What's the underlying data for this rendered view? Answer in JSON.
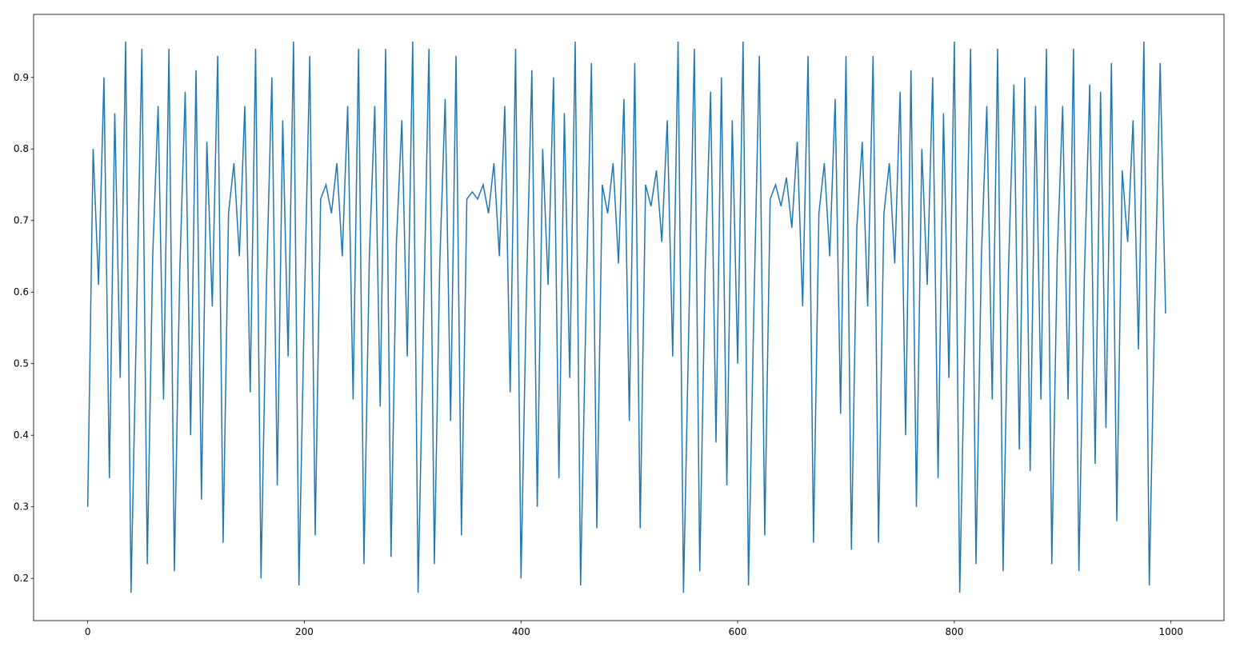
{
  "chart_data": {
    "type": "line",
    "color": "#1f77b4",
    "x": [
      0,
      5,
      10,
      15,
      20,
      25,
      30,
      35,
      40,
      45,
      50,
      55,
      60,
      65,
      70,
      75,
      80,
      85,
      90,
      95,
      100,
      105,
      110,
      115,
      120,
      125,
      130,
      135,
      140,
      145,
      150,
      155,
      160,
      165,
      170,
      175,
      180,
      185,
      190,
      195,
      200,
      205,
      210,
      215,
      220,
      225,
      230,
      235,
      240,
      245,
      250,
      255,
      260,
      265,
      270,
      275,
      280,
      285,
      290,
      295,
      300,
      305,
      310,
      315,
      320,
      325,
      330,
      335,
      340,
      345,
      350,
      355,
      360,
      365,
      370,
      375,
      380,
      385,
      390,
      395,
      400,
      405,
      410,
      415,
      420,
      425,
      430,
      435,
      440,
      445,
      450,
      455,
      460,
      465,
      470,
      475,
      480,
      485,
      490,
      495,
      500,
      505,
      510,
      515,
      520,
      525,
      530,
      535,
      540,
      545,
      550,
      555,
      560,
      565,
      570,
      575,
      580,
      585,
      590,
      595,
      600,
      605,
      610,
      615,
      620,
      625,
      630,
      635,
      640,
      645,
      650,
      655,
      660,
      665,
      670,
      675,
      680,
      685,
      690,
      695,
      700,
      705,
      710,
      715,
      720,
      725,
      730,
      735,
      740,
      745,
      750,
      755,
      760,
      765,
      770,
      775,
      780,
      785,
      790,
      795,
      800,
      805,
      810,
      815,
      820,
      825,
      830,
      835,
      840,
      845,
      850,
      855,
      860,
      865,
      870,
      875,
      880,
      885,
      890,
      895,
      900,
      905,
      910,
      915,
      920,
      925,
      930,
      935,
      940,
      945,
      950,
      955,
      960,
      965,
      970,
      975,
      980,
      985,
      990,
      995
    ],
    "values": [
      0.3,
      0.8,
      0.61,
      0.9,
      0.34,
      0.85,
      0.48,
      0.95,
      0.18,
      0.56,
      0.94,
      0.22,
      0.65,
      0.86,
      0.45,
      0.94,
      0.21,
      0.63,
      0.88,
      0.4,
      0.91,
      0.31,
      0.81,
      0.58,
      0.93,
      0.25,
      0.71,
      0.78,
      0.65,
      0.86,
      0.46,
      0.94,
      0.2,
      0.61,
      0.9,
      0.33,
      0.84,
      0.51,
      0.95,
      0.19,
      0.58,
      0.93,
      0.26,
      0.73,
      0.75,
      0.71,
      0.78,
      0.65,
      0.86,
      0.45,
      0.94,
      0.22,
      0.65,
      0.86,
      0.44,
      0.94,
      0.23,
      0.67,
      0.84,
      0.51,
      0.95,
      0.18,
      0.56,
      0.94,
      0.22,
      0.64,
      0.87,
      0.42,
      0.93,
      0.26,
      0.73,
      0.74,
      0.73,
      0.75,
      0.71,
      0.78,
      0.65,
      0.86,
      0.46,
      0.94,
      0.2,
      0.6,
      0.91,
      0.3,
      0.8,
      0.61,
      0.9,
      0.34,
      0.85,
      0.48,
      0.95,
      0.19,
      0.58,
      0.92,
      0.27,
      0.75,
      0.71,
      0.78,
      0.64,
      0.87,
      0.42,
      0.92,
      0.27,
      0.75,
      0.72,
      0.77,
      0.67,
      0.84,
      0.51,
      0.95,
      0.18,
      0.56,
      0.94,
      0.21,
      0.63,
      0.88,
      0.39,
      0.9,
      0.33,
      0.84,
      0.5,
      0.95,
      0.19,
      0.58,
      0.93,
      0.26,
      0.73,
      0.75,
      0.72,
      0.76,
      0.69,
      0.81,
      0.58,
      0.93,
      0.25,
      0.71,
      0.78,
      0.65,
      0.87,
      0.43,
      0.93,
      0.24,
      0.69,
      0.81,
      0.58,
      0.93,
      0.25,
      0.71,
      0.78,
      0.64,
      0.88,
      0.4,
      0.91,
      0.3,
      0.8,
      0.61,
      0.9,
      0.34,
      0.85,
      0.48,
      0.95,
      0.18,
      0.56,
      0.94,
      0.22,
      0.65,
      0.86,
      0.45,
      0.94,
      0.21,
      0.63,
      0.89,
      0.38,
      0.9,
      0.35,
      0.86,
      0.45,
      0.94,
      0.22,
      0.65,
      0.86,
      0.45,
      0.94,
      0.21,
      0.62,
      0.89,
      0.36,
      0.88,
      0.41,
      0.92,
      0.28,
      0.77,
      0.67,
      0.84,
      0.52,
      0.95,
      0.19,
      0.58,
      0.92,
      0.57
    ],
    "xlim": [
      -49.95,
      1048.95
    ],
    "xticks": [
      0,
      200,
      400,
      600,
      800,
      1000
    ],
    "ylim": [
      0.141,
      0.988
    ],
    "yticks": [
      0.2,
      0.3,
      0.4,
      0.5,
      0.6,
      0.7,
      0.8,
      0.9
    ]
  }
}
